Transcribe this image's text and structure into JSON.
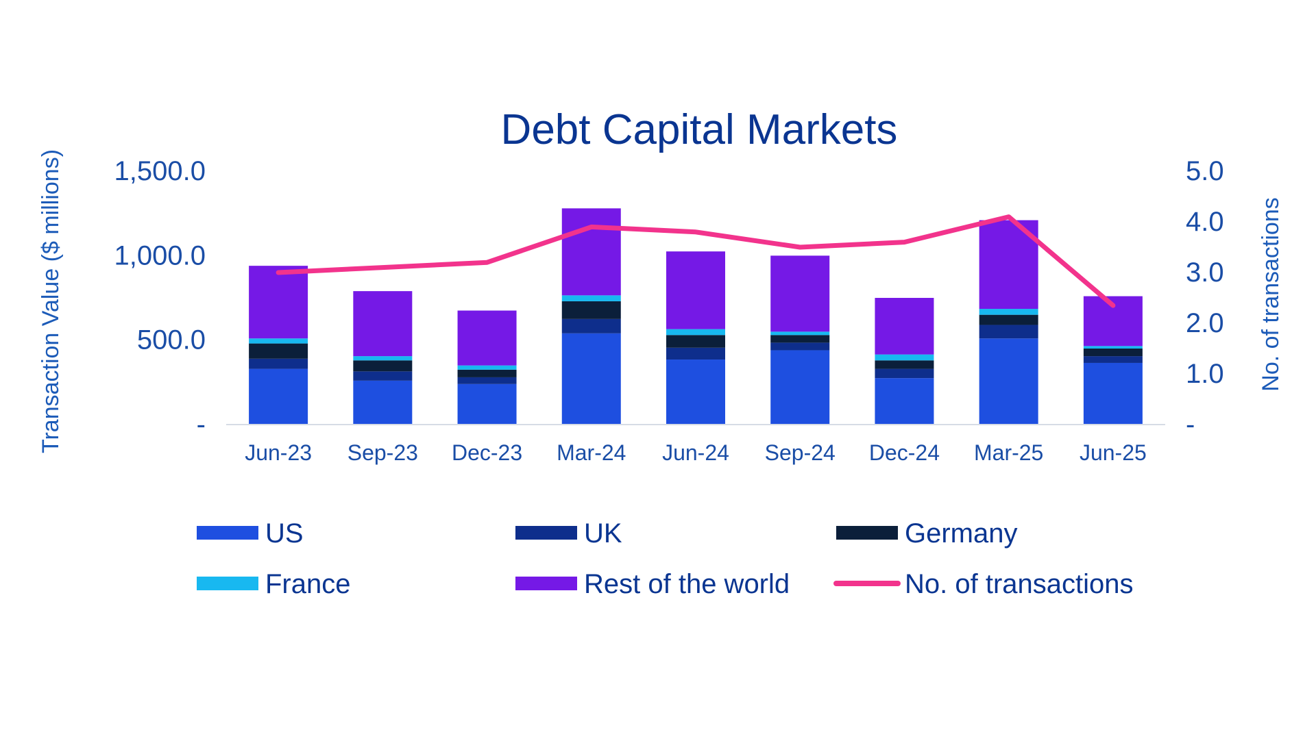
{
  "chart_data": {
    "type": "bar",
    "stacked": true,
    "title": "Debt Capital Markets",
    "ylabel": "Transaction Value ($ millions)",
    "y2label": "No. of transactions",
    "ylim": [
      0,
      1500
    ],
    "y2lim": [
      0,
      5
    ],
    "y_ticks": [
      "-",
      "500.0",
      "1,000.0",
      "1,500.0"
    ],
    "y_tick_values": [
      0,
      500,
      1000,
      1500
    ],
    "y2_ticks": [
      "-",
      "1.0",
      "2.0",
      "3.0",
      "4.0",
      "5.0"
    ],
    "y2_tick_values": [
      0,
      1,
      2,
      3,
      4,
      5
    ],
    "categories": [
      "Jun-23",
      "Sep-23",
      "Dec-23",
      "Mar-24",
      "Jun-24",
      "Sep-24",
      "Dec-24",
      "Mar-25",
      "Jun-25"
    ],
    "series": [
      {
        "name": "US",
        "color": "#1E4FE0",
        "values": [
          330,
          260,
          240,
          540,
          385,
          440,
          275,
          510,
          365
        ]
      },
      {
        "name": "UK",
        "color": "#0E2E8C",
        "values": [
          60,
          55,
          40,
          85,
          70,
          45,
          55,
          80,
          40
        ]
      },
      {
        "name": "Germany",
        "color": "#0B1F3A",
        "values": [
          90,
          65,
          45,
          105,
          75,
          45,
          50,
          60,
          45
        ]
      },
      {
        "name": "France",
        "color": "#18B8F0",
        "values": [
          30,
          25,
          25,
          35,
          35,
          20,
          35,
          35,
          15
        ]
      },
      {
        "name": "Rest of the world",
        "color": "#7519E6",
        "values": [
          430,
          385,
          325,
          515,
          460,
          450,
          335,
          525,
          295
        ]
      }
    ],
    "line_series": {
      "name": "No. of transactions",
      "color": "#F2338C",
      "axis": "right",
      "values": [
        3.0,
        3.1,
        3.2,
        3.9,
        3.8,
        3.5,
        3.6,
        4.1,
        2.35
      ]
    },
    "legend_position": "bottom",
    "grid": false
  }
}
